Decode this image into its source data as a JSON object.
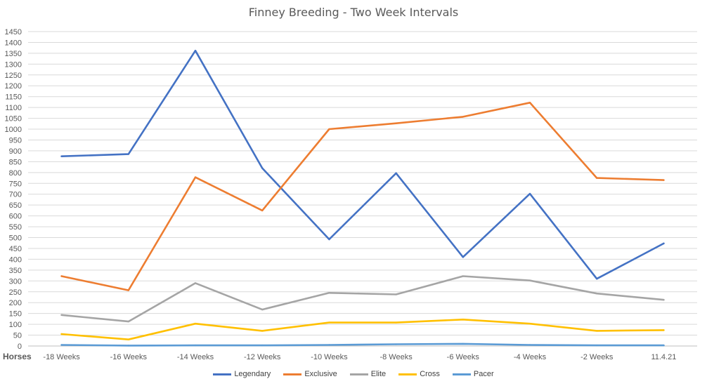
{
  "chart_data": {
    "type": "line",
    "title": "Finney Breeding - Two Week Intervals",
    "xlabel": "Horses",
    "ylabel": "",
    "ylim": [
      0,
      1450
    ],
    "ytick_step": 50,
    "grid": true,
    "legend_position": "bottom",
    "categories": [
      "-18 Weeks",
      "-16 Weeks",
      "-14 Weeks",
      "-12 Weeks",
      "-10 Weeks",
      "-8 Weeks",
      "-6 Weeks",
      "-4 Weeks",
      "-2 Weeks",
      "11.4.21"
    ],
    "series": [
      {
        "name": "Legendary",
        "color": "#4472C4",
        "values": [
          875,
          885,
          1362,
          820,
          492,
          797,
          410,
          702,
          310,
          473
        ]
      },
      {
        "name": "Exclusive",
        "color": "#ED7D31",
        "values": [
          322,
          257,
          778,
          625,
          1000,
          1027,
          1057,
          1122,
          775,
          765
        ]
      },
      {
        "name": "Elite",
        "color": "#A5A5A5",
        "values": [
          143,
          113,
          290,
          168,
          245,
          238,
          322,
          302,
          242,
          213
        ]
      },
      {
        "name": "Cross",
        "color": "#FFC000",
        "values": [
          55,
          30,
          103,
          70,
          108,
          108,
          122,
          103,
          70,
          73
        ]
      },
      {
        "name": "Pacer",
        "color": "#5B9BD5",
        "values": [
          5,
          2,
          3,
          3,
          5,
          8,
          10,
          5,
          3,
          3
        ]
      }
    ]
  }
}
